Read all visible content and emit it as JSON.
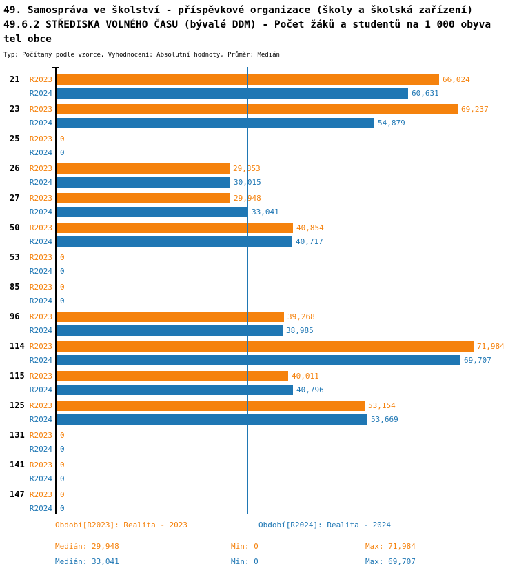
{
  "header": {
    "title_line1": "49. Samospráva ve školství - příspěvkové organizace (školy a školská zařízení)",
    "title_line2": "49.6.2 STŘEDISKA VOLNÉHO ČASU (bývalé DDM) - Počet žáků a studentů na 1 000 obyva",
    "title_line3": "tel obce",
    "subtitle": "Typ: Počítaný podle vzorce, Vyhodnocení: Absolutní hodnoty, Průměr: Medián"
  },
  "chart_data": {
    "type": "bar",
    "orientation": "horizontal",
    "title": "49.6.2 STŘEDISKA VOLNÉHO ČASU (bývalé DDM) - Počet žáků a studentů na 1 000 obyvatel obce",
    "categories": [
      "21",
      "23",
      "25",
      "26",
      "27",
      "50",
      "53",
      "85",
      "96",
      "114",
      "115",
      "125",
      "131",
      "141",
      "147"
    ],
    "series": [
      {
        "name": "R2023",
        "legend": "Období[R2023]: Realita - 2023",
        "color": "#f5820d",
        "values": [
          66.024,
          69.237,
          0,
          29.853,
          29.948,
          40.854,
          0,
          0,
          39.268,
          71.984,
          40.011,
          53.154,
          0,
          0,
          0
        ],
        "values_display": [
          "66,024",
          "69,237",
          "0",
          "29,853",
          "29,948",
          "40,854",
          "0",
          "0",
          "39,268",
          "71,984",
          "40,011",
          "53,154",
          "0",
          "0",
          "0"
        ],
        "median": 29.948,
        "median_display": "29,948",
        "min": 0,
        "min_display": "0",
        "max": 71.984,
        "max_display": "71,984"
      },
      {
        "name": "R2024",
        "legend": "Období[R2024]: Realita - 2024",
        "color": "#1f77b4",
        "values": [
          60.631,
          54.879,
          0,
          30.015,
          33.041,
          40.717,
          0,
          0,
          38.985,
          69.707,
          40.796,
          53.669,
          0,
          0,
          0
        ],
        "values_display": [
          "60,631",
          "54,879",
          "0",
          "30,015",
          "33,041",
          "40,717",
          "0",
          "0",
          "38,985",
          "69,707",
          "40,796",
          "53,669",
          "0",
          "0",
          "0"
        ],
        "median": 33.041,
        "median_display": "33,041",
        "min": 0,
        "min_display": "0",
        "max": 69.707,
        "max_display": "69,707"
      }
    ],
    "xlim": [
      0,
      72
    ],
    "value_labels": true,
    "median_lines": true,
    "grid": false,
    "legend_position": "bottom"
  },
  "legend": {
    "r2023": "Období[R2023]: Realita - 2023",
    "r2024": "Období[R2024]: Realita - 2024"
  },
  "stats": {
    "r2023": {
      "median": "Medián: 29,948",
      "min": "Min: 0",
      "max": "Max: 71,984"
    },
    "r2024": {
      "median": "Medián: 33,041",
      "min": "Min: 0",
      "max": "Max: 69,707"
    }
  },
  "colors": {
    "r2023": "#f5820d",
    "r2024": "#1f77b4",
    "axis": "#000000",
    "background": "#ffffff"
  }
}
